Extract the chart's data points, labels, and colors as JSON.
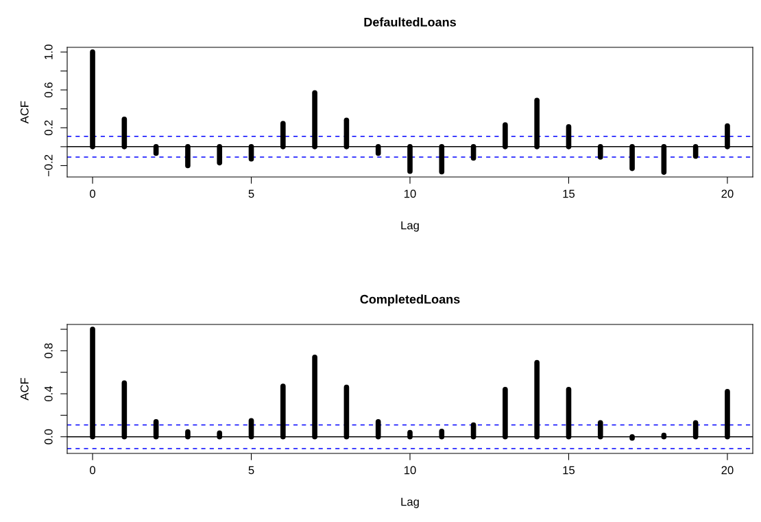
{
  "chart_data": [
    {
      "type": "bar",
      "title": "DefaultedLoans",
      "xlabel": "Lag",
      "ylabel": "ACF",
      "x": [
        0,
        1,
        2,
        3,
        4,
        5,
        6,
        7,
        8,
        9,
        10,
        11,
        12,
        13,
        14,
        15,
        16,
        17,
        18,
        19,
        20
      ],
      "values": [
        1.0,
        0.29,
        -0.07,
        -0.2,
        -0.17,
        -0.13,
        0.245,
        0.57,
        0.28,
        -0.07,
        -0.26,
        -0.265,
        -0.12,
        0.23,
        0.49,
        0.21,
        -0.11,
        -0.23,
        -0.27,
        -0.1,
        0.22
      ],
      "color": "#000000",
      "xlim": [
        -0.8,
        20.8
      ],
      "ylim": [
        -0.32,
        1.05
      ],
      "xticks": [
        0,
        5,
        10,
        15,
        20
      ],
      "yticks": [
        {
          "value": -0.2,
          "label": "−0.2"
        },
        {
          "value": 0.0,
          "label": null
        },
        {
          "value": 0.2,
          "label": "0.2"
        },
        {
          "value": 0.4,
          "label": null
        },
        {
          "value": 0.6,
          "label": "0.6"
        },
        {
          "value": 0.8,
          "label": null
        },
        {
          "value": 1.0,
          "label": "1.0"
        }
      ],
      "ref_lines": [
        {
          "axis": "y",
          "value": 0,
          "color": "#000000",
          "line_style": "solid"
        },
        {
          "axis": "y",
          "value": 0.11,
          "color": "#0000ff",
          "line_style": "dashed"
        },
        {
          "axis": "y",
          "value": -0.11,
          "color": "#0000ff",
          "line_style": "dashed"
        }
      ]
    },
    {
      "type": "bar",
      "title": "CompletedLoans",
      "xlabel": "Lag",
      "ylabel": "ACF",
      "x": [
        0,
        1,
        2,
        3,
        4,
        5,
        6,
        7,
        8,
        9,
        10,
        11,
        12,
        13,
        14,
        15,
        16,
        17,
        18,
        19,
        20
      ],
      "values": [
        1.0,
        0.5,
        0.14,
        0.045,
        0.034,
        0.15,
        0.47,
        0.74,
        0.46,
        0.14,
        0.04,
        0.05,
        0.11,
        0.44,
        0.69,
        0.44,
        0.13,
        -0.013,
        0.013,
        0.13,
        0.42
      ],
      "color": "#000000",
      "xlim": [
        -0.8,
        20.8
      ],
      "ylim": [
        -0.155,
        1.045
      ],
      "xticks": [
        0,
        5,
        10,
        15,
        20
      ],
      "yticks": [
        {
          "value": 0.0,
          "label": "0.0"
        },
        {
          "value": 0.2,
          "label": null
        },
        {
          "value": 0.4,
          "label": "0.4"
        },
        {
          "value": 0.6,
          "label": null
        },
        {
          "value": 0.8,
          "label": "0.8"
        },
        {
          "value": 1.0,
          "label": null
        }
      ],
      "ref_lines": [
        {
          "axis": "y",
          "value": 0,
          "color": "#000000",
          "line_style": "solid"
        },
        {
          "axis": "y",
          "value": 0.11,
          "color": "#0000ff",
          "line_style": "dashed"
        },
        {
          "axis": "y",
          "value": -0.11,
          "color": "#0000ff",
          "line_style": "dashed"
        }
      ]
    }
  ]
}
